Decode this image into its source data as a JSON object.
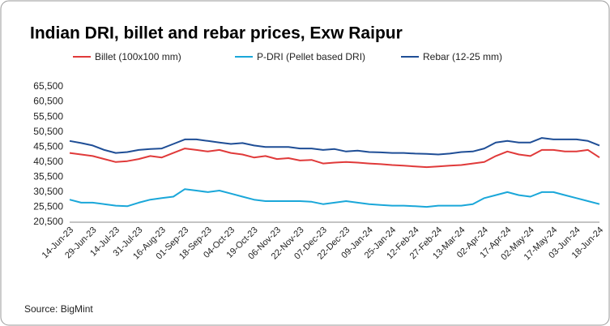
{
  "chart_data": {
    "type": "line",
    "title": "Indian DRI, billet and rebar prices, Exw Raipur",
    "source": "Source: BigMint",
    "categories": [
      "14-Jun-23",
      null,
      "29-Jun-23",
      null,
      "14-Jul-23",
      null,
      "31-Jul-23",
      null,
      "16-Aug-23",
      null,
      "01-Sep-23",
      null,
      "18-Sep-23",
      null,
      "04-Oct-23",
      null,
      "19-Oct-23",
      null,
      "06-Nov-23",
      null,
      "22-Nov-23",
      null,
      "07-Dec-23",
      null,
      "22-Dec-23",
      null,
      "09-Jan-24",
      null,
      "25-Jan-24",
      null,
      "12-Feb-24",
      null,
      "27-Feb-24",
      null,
      "13-Mar-24",
      null,
      "02-Apr-24",
      null,
      "17-Apr-24",
      null,
      "02-May-24",
      null,
      "17-May-24",
      null,
      "03-Jun-24",
      null,
      "18-Jun-24"
    ],
    "series": [
      {
        "name": "Billet (100x100 mm)",
        "color": "#e03a3a",
        "values": [
          43500,
          43000,
          42500,
          41500,
          40500,
          40800,
          41500,
          42500,
          42000,
          43500,
          45000,
          44500,
          44000,
          44500,
          43500,
          43000,
          42000,
          42500,
          41500,
          41800,
          41000,
          41200,
          40000,
          40300,
          40500,
          40300,
          40000,
          39800,
          39500,
          39300,
          39000,
          38800,
          39000,
          39300,
          39500,
          40000,
          40500,
          42500,
          44000,
          43000,
          42500,
          44500,
          44500,
          44000,
          44000,
          44500,
          42000
        ]
      },
      {
        "name": "P-DRI (Pellet based DRI)",
        "color": "#1aa7d9",
        "values": [
          28000,
          27000,
          27000,
          26500,
          26000,
          25800,
          27000,
          28000,
          28500,
          29000,
          31500,
          31000,
          30500,
          31000,
          30000,
          29000,
          28000,
          27500,
          27500,
          27500,
          27500,
          27300,
          26500,
          27000,
          27500,
          27000,
          26500,
          26200,
          26000,
          26000,
          25800,
          25600,
          26000,
          26000,
          26000,
          26500,
          28500,
          29500,
          30500,
          29500,
          29000,
          30500,
          30500,
          29500,
          28500,
          27500,
          26500
        ]
      },
      {
        "name": "Rebar (12-25 mm)",
        "color": "#1f4e96",
        "values": [
          47500,
          46800,
          46000,
          44500,
          43500,
          43800,
          44500,
          44800,
          45000,
          46500,
          48000,
          48000,
          47500,
          47000,
          46500,
          46800,
          46000,
          45500,
          45500,
          45500,
          45000,
          45000,
          44500,
          44800,
          44000,
          44300,
          43800,
          43700,
          43500,
          43500,
          43300,
          43200,
          43000,
          43300,
          43800,
          44000,
          45000,
          47000,
          47500,
          47000,
          47000,
          48500,
          48000,
          48000,
          48000,
          47500,
          46000
        ]
      }
    ],
    "ylim": [
      20500,
      65500
    ],
    "yticks": [
      {
        "value": 20500,
        "label": "20,500"
      },
      {
        "value": 25500,
        "label": "25,500"
      },
      {
        "value": 30500,
        "label": "30,500"
      },
      {
        "value": 35500,
        "label": "35,500"
      },
      {
        "value": 40500,
        "label": "40,500"
      },
      {
        "value": 45500,
        "label": "45,500"
      },
      {
        "value": 50500,
        "label": "50,500"
      },
      {
        "value": 55500,
        "label": "55,500"
      },
      {
        "value": 60500,
        "label": "60,500"
      },
      {
        "value": 65500,
        "label": "65,500"
      }
    ],
    "grid": false
  }
}
